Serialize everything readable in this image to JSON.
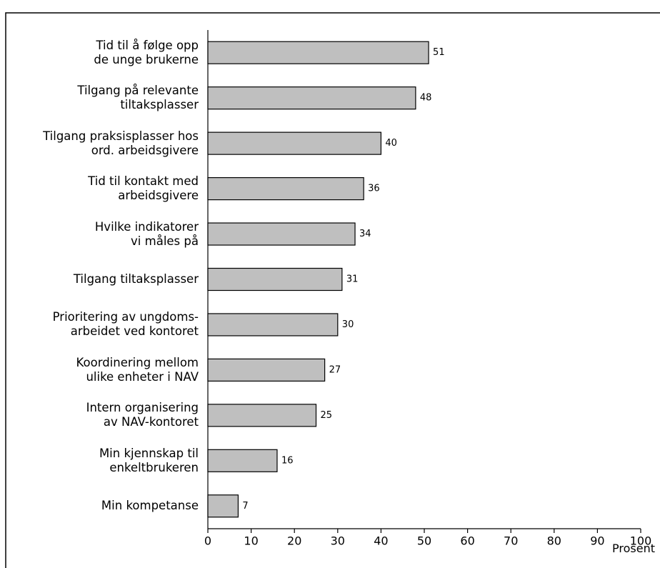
{
  "chart_data": {
    "type": "bar",
    "orientation": "horizontal",
    "categories": [
      "Tid til å følge opp\nde unge brukerne",
      "Tilgang på relevante\ntiltaksplasser",
      "Tilgang praksisplasser hos\nord. arbeidsgivere",
      "Tid til kontakt med\narbeidsgivere",
      "Hvilke indikatorer\nvi måles på",
      "Tilgang tiltaksplasser",
      "Prioritering av ungdoms-\narbeidet ved kontoret",
      "Koordinering mellom\nulike enheter i NAV",
      "Intern organisering\nav NAV-kontoret",
      "Min kjennskap til\nenkeltbrukeren",
      "Min kompetanse"
    ],
    "values": [
      51,
      48,
      40,
      36,
      34,
      31,
      30,
      27,
      25,
      16,
      7
    ],
    "color": "#bfbfbf",
    "xlim": [
      0,
      100
    ],
    "xticks": [
      0,
      10,
      20,
      30,
      40,
      50,
      60,
      70,
      80,
      90,
      100
    ],
    "xlabel": "Prosent"
  }
}
